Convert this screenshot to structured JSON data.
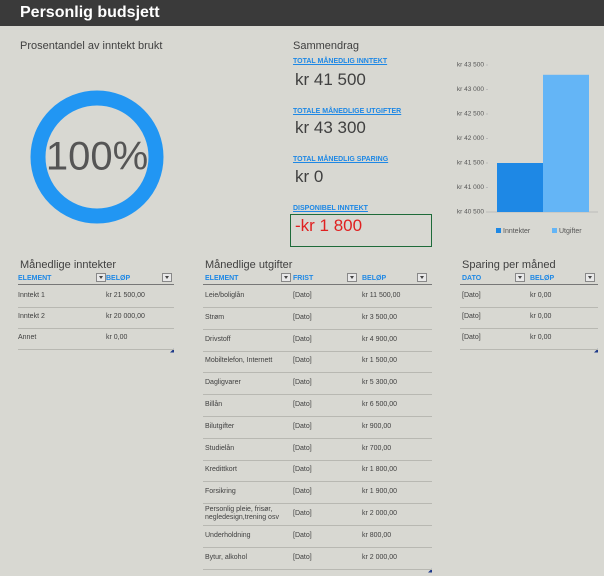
{
  "header": {
    "title": "Personlig budsjett"
  },
  "chart_data": [
    {
      "type": "donut",
      "title": "Prosentandel av inntekt brukt",
      "values": [
        100
      ],
      "value_labels": [
        "100%"
      ],
      "color": "#2196f3"
    },
    {
      "type": "bar",
      "categories": [
        "Inntekter",
        "Utgifter"
      ],
      "values": [
        41500,
        43300
      ],
      "colors": [
        "#1e88e5",
        "#64b5f6"
      ],
      "ylim": [
        40500,
        43500
      ],
      "yticks": [
        {
          "value": 40500,
          "label": "kr 40 500"
        },
        {
          "value": 41000,
          "label": "kr 41 000"
        },
        {
          "value": 41500,
          "label": "kr 41 500"
        },
        {
          "value": 42000,
          "label": "kr 42 000"
        },
        {
          "value": 42500,
          "label": "kr 42 500"
        },
        {
          "value": 43000,
          "label": "kr 43 000"
        },
        {
          "value": 43500,
          "label": "kr 43 500"
        }
      ],
      "legend": "bottom"
    }
  ],
  "summary": {
    "title": "Sammendrag",
    "items": [
      {
        "label": "TOTAL MÅNEDLIG INNTEKT",
        "value": "kr 41 500"
      },
      {
        "label": "TOTALE MÅNEDLIGE UTGIFTER",
        "value": "kr 43 300"
      },
      {
        "label": "TOTAL MÅNEDLIG SPARING",
        "value": "kr 0"
      },
      {
        "label": "DISPONIBEL INNTEKT",
        "value": "-kr 1 800"
      }
    ]
  },
  "tables": [
    {
      "title": "Månedlige inntekter",
      "columns": [
        "ELEMENT",
        "BELØP"
      ],
      "rows": [
        [
          "Inntekt 1",
          "kr 21 500,00"
        ],
        [
          "Inntekt 2",
          "kr 20 000,00"
        ],
        [
          "Annet",
          "kr 0,00"
        ]
      ]
    },
    {
      "title": "Månedlige utgifter",
      "columns": [
        "ELEMENT",
        "FRIST",
        "BELØP"
      ],
      "rows": [
        [
          "Leie/boliglån",
          "[Dato]",
          "kr 11 500,00"
        ],
        [
          "Strøm",
          "[Dato]",
          "kr 3 500,00"
        ],
        [
          "Drivstoff",
          "[Dato]",
          "kr 4 900,00"
        ],
        [
          "Mobiltelefon, Internett",
          "[Dato]",
          "kr 1 500,00"
        ],
        [
          "Dagligvarer",
          "[Dato]",
          "kr 5 300,00"
        ],
        [
          "Billån",
          "[Dato]",
          "kr 6 500,00"
        ],
        [
          "Bilutgifter",
          "[Dato]",
          "kr 900,00"
        ],
        [
          "Studielån",
          "[Dato]",
          "kr 700,00"
        ],
        [
          "Kredittkort",
          "[Dato]",
          "kr 1 800,00"
        ],
        [
          "Forsikring",
          "[Dato]",
          "kr 1 900,00"
        ],
        [
          "Personlig pleie, frisør, negledesign,trening osv",
          "[Dato]",
          "kr 2 000,00"
        ],
        [
          "Underholdning",
          "[Dato]",
          "kr 800,00"
        ],
        [
          "Bytur, alkohol",
          "[Dato]",
          "kr 2 000,00"
        ]
      ]
    },
    {
      "title": "Sparing per måned",
      "columns": [
        "DATO",
        "BELØP"
      ],
      "rows": [
        [
          "[Dato]",
          "kr 0,00"
        ],
        [
          "[Dato]",
          "kr 0,00"
        ],
        [
          "[Dato]",
          "kr 0,00"
        ]
      ]
    }
  ]
}
